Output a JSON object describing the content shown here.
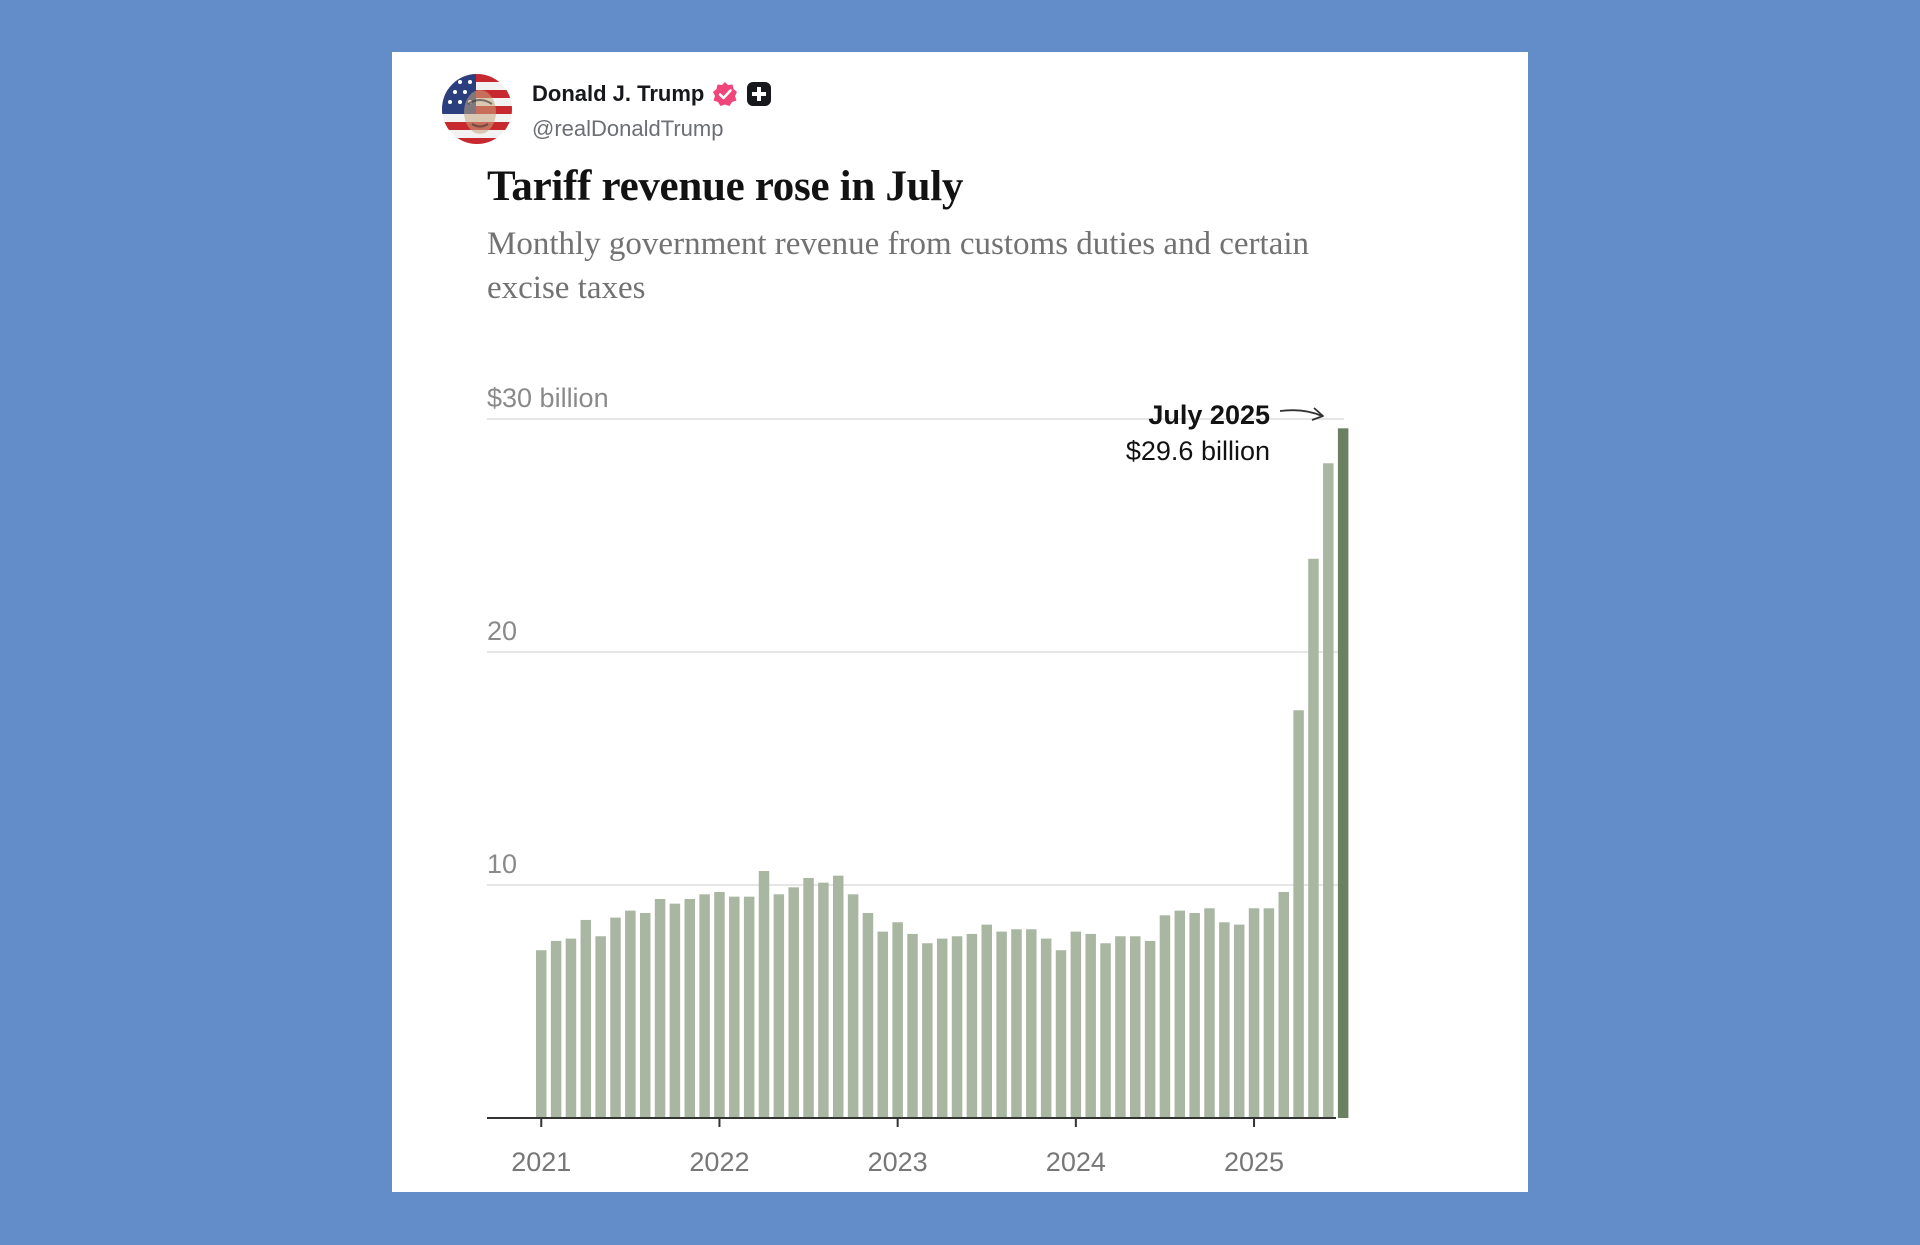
{
  "post": {
    "display_name": "Donald J. Trump",
    "handle": "@realDonaldTrump",
    "verified_color": "#f0447b",
    "icons": [
      "avatar",
      "verified-badge-icon",
      "plus-icon"
    ]
  },
  "colors": {
    "background": "#638dc9",
    "card": "#ffffff",
    "bar": "#a9b7a2",
    "bar_highlight": "#6b7f62",
    "gridline": "#dddddd",
    "axis": "#333333"
  },
  "chart_data": {
    "type": "bar",
    "title": "Tariff revenue rose in July",
    "subtitle": "Monthly government revenue from customs duties and certain excise taxes",
    "y_unit_label": "$30 billion",
    "y_ticks": [
      {
        "value": 30,
        "label": "$30 billion"
      },
      {
        "value": 20,
        "label": "20"
      },
      {
        "value": 10,
        "label": "10"
      }
    ],
    "x_ticks": [
      {
        "index": 0,
        "label": "2021"
      },
      {
        "index": 12,
        "label": "2022"
      },
      {
        "index": 24,
        "label": "2023"
      },
      {
        "index": 36,
        "label": "2024"
      },
      {
        "index": 48,
        "label": "2025"
      }
    ],
    "ylim": [
      0,
      30
    ],
    "start": "January 2021",
    "end": "July 2025",
    "values": [
      7.2,
      7.6,
      7.7,
      8.5,
      7.8,
      8.6,
      8.9,
      8.8,
      9.4,
      9.2,
      9.4,
      9.6,
      9.7,
      9.5,
      9.5,
      10.6,
      9.6,
      9.9,
      10.3,
      10.1,
      10.4,
      9.6,
      8.8,
      8.0,
      8.4,
      7.9,
      7.5,
      7.7,
      7.8,
      7.9,
      8.3,
      8.0,
      8.1,
      8.1,
      7.7,
      7.2,
      8.0,
      7.9,
      7.5,
      7.8,
      7.8,
      7.6,
      8.7,
      8.9,
      8.8,
      9.0,
      8.4,
      8.3,
      9.0,
      9.0,
      9.7,
      17.5,
      24.0,
      28.1,
      29.6
    ],
    "highlight_index": 54,
    "annotation": {
      "label": "July 2025",
      "value_label": "$29.6 billion"
    },
    "grid": true
  }
}
